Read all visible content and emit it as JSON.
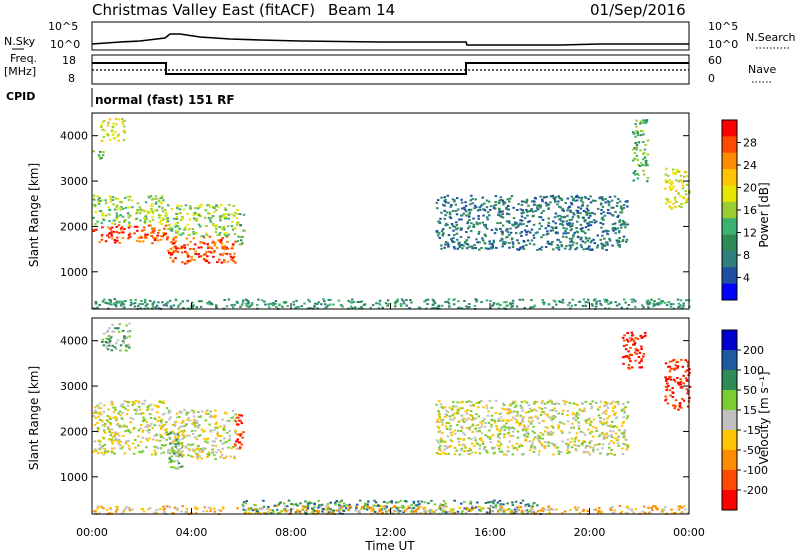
{
  "header": {
    "title": "Christmas Valley East (fitACF)",
    "beam": "Beam 14",
    "date": "01/Sep/2016"
  },
  "top_panels": {
    "nsky_label": "N.Sky",
    "nsky_ticks": [
      "10^5",
      "10^0"
    ],
    "nsearch_label": "N.Search",
    "nsearch_ticks": [
      "10^5",
      "10^0"
    ],
    "freq_label": "Freq.",
    "freq_unit": "[MHz]",
    "freq_ticks": [
      "18",
      "8"
    ],
    "nave_label": "Nave",
    "nave_ticks": [
      "60",
      "0"
    ],
    "cpid_label": "CPID",
    "cpid_text": "normal (fast) 151 RF"
  },
  "time_axis": {
    "label": "Time UT",
    "ticks": [
      "00:00",
      "04:00",
      "08:00",
      "12:00",
      "16:00",
      "20:00",
      "00:00"
    ]
  },
  "power_colorbar": {
    "label": "Power [dB]",
    "ticks": [
      "28",
      "24",
      "20",
      "16",
      "12",
      "8",
      "4"
    ],
    "colors": [
      "#ff0000",
      "#ff4a00",
      "#ff8c00",
      "#ffc400",
      "#e6e600",
      "#9acd32",
      "#3cb371",
      "#2e8b57",
      "#2f7f7f",
      "#1e50a0",
      "#0000ff"
    ]
  },
  "velocity_colorbar": {
    "label": "Velocity [m s⁻¹]",
    "ticks": [
      "200",
      "100",
      "50",
      "15",
      "-15",
      "-50",
      "-100",
      "-200"
    ],
    "colors": [
      "#0000cd",
      "#1e5aa0",
      "#2e8b57",
      "#7ccd32",
      "#c0c0c0",
      "#ffc400",
      "#ff8c00",
      "#ff4a00",
      "#ff0000"
    ]
  },
  "chart_data": [
    {
      "type": "heatmap",
      "title": "Power",
      "xlabel": "Time UT",
      "ylabel": "Slant Range [km]",
      "yticks": [
        1000,
        2000,
        3000,
        4000
      ],
      "ylim": [
        180,
        4500
      ],
      "xlim_hours": [
        0,
        24
      ],
      "regions": [
        {
          "t0": 0.0,
          "t1": 3.0,
          "r0": 1650,
          "r1": 2050,
          "level": 9
        },
        {
          "t0": 0.0,
          "t1": 3.0,
          "r0": 2050,
          "r1": 2700,
          "level": 5
        },
        {
          "t0": 3.0,
          "t1": 5.8,
          "r0": 1200,
          "r1": 1800,
          "level": 9
        },
        {
          "t0": 3.0,
          "t1": 5.8,
          "r0": 1800,
          "r1": 2500,
          "level": 5
        },
        {
          "t0": 5.8,
          "t1": 6.1,
          "r0": 1600,
          "r1": 2300,
          "level": 4
        },
        {
          "t0": 0.3,
          "t1": 1.3,
          "r0": 3900,
          "r1": 4400,
          "level": 6
        },
        {
          "t0": 0.0,
          "t1": 0.5,
          "r0": 3500,
          "r1": 3700,
          "level": 4
        },
        {
          "t0": 13.8,
          "t1": 21.5,
          "r0": 1500,
          "r1": 2700,
          "level": 2
        },
        {
          "t0": 21.7,
          "t1": 22.3,
          "r0": 3000,
          "r1": 4400,
          "level": 4
        },
        {
          "t0": 23.0,
          "t1": 24.0,
          "r0": 2400,
          "r1": 3300,
          "level": 6
        },
        {
          "t0": 0.0,
          "t1": 24.0,
          "r0": 200,
          "r1": 420,
          "level": 3
        }
      ]
    },
    {
      "type": "heatmap",
      "title": "Velocity",
      "xlabel": "Time UT",
      "ylabel": "Slant Range [km]",
      "yticks": [
        1000,
        2000,
        3000,
        4000
      ],
      "ylim": [
        180,
        4500
      ],
      "xlim_hours": [
        0,
        24
      ],
      "regions": [
        {
          "t0": 0.0,
          "t1": 3.0,
          "r0": 1500,
          "r1": 2700,
          "level": 4
        },
        {
          "t0": 3.0,
          "t1": 5.8,
          "r0": 1400,
          "r1": 2500,
          "level": 4
        },
        {
          "t0": 3.0,
          "t1": 3.6,
          "r0": 1200,
          "r1": 2000,
          "level": 5
        },
        {
          "t0": 5.7,
          "t1": 6.1,
          "r0": 1600,
          "r1": 2400,
          "level": 0
        },
        {
          "t0": 0.3,
          "t1": 1.5,
          "r0": 3800,
          "r1": 4400,
          "level": 5
        },
        {
          "t0": 13.8,
          "t1": 21.5,
          "r0": 1500,
          "r1": 2700,
          "level": 4
        },
        {
          "t0": 21.3,
          "t1": 22.3,
          "r0": 3400,
          "r1": 4200,
          "level": 0
        },
        {
          "t0": 23.0,
          "t1": 24.0,
          "r0": 2500,
          "r1": 3600,
          "level": 0
        },
        {
          "t0": 6.0,
          "t1": 18.0,
          "r0": 200,
          "r1": 500,
          "level": 6
        },
        {
          "t0": 0.0,
          "t1": 24.0,
          "r0": 200,
          "r1": 380,
          "level": 3
        }
      ]
    }
  ]
}
